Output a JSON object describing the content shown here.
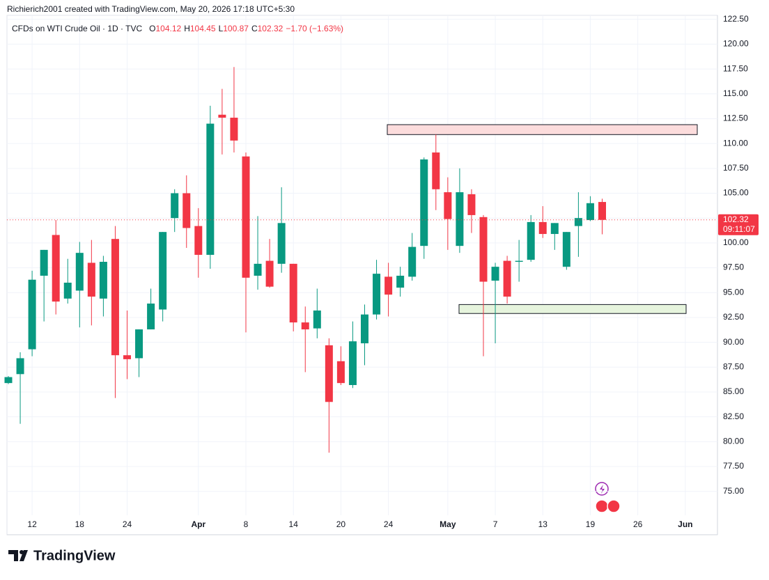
{
  "credit": "Richierich2001 created with TradingView.com, May 20, 2026 17:18 UTC+5:30",
  "header": {
    "symbol": "CFDs on WTI Crude Oil · 1D · TVC",
    "ohlc_labels": [
      "O",
      "H",
      "L",
      "C"
    ],
    "change": "−1.70 (−1.63%)"
  },
  "logo": "TradingView",
  "chart_data": {
    "type": "candlestick",
    "up_color": "#089981",
    "down_color": "#f23645",
    "categories": [
      null,
      null,
      "12",
      null,
      null,
      null,
      "18",
      null,
      null,
      null,
      "24",
      null,
      null,
      null,
      null,
      null,
      "Apr",
      null,
      null,
      null,
      "8",
      null,
      null,
      null,
      "14",
      null,
      null,
      null,
      "20",
      null,
      null,
      null,
      "24",
      null,
      null,
      null,
      null,
      "May",
      null,
      null,
      null,
      "7",
      null,
      null,
      null,
      "13",
      null,
      null,
      null,
      "19",
      null,
      null,
      null,
      "26",
      null,
      null,
      null,
      "Jun"
    ],
    "open": [
      85.9,
      86.8,
      89.3,
      96.7,
      100.8,
      94.4,
      95.2,
      98.0,
      94.4,
      100.4,
      88.7,
      88.4,
      91.3,
      93.3,
      102.5,
      105.0,
      101.7,
      98.8,
      112.9,
      112.6,
      108.7,
      96.7,
      98.2,
      97.9,
      97.9,
      92.0,
      91.4,
      89.7,
      88.1,
      85.7,
      89.9,
      92.8,
      96.6,
      95.5,
      96.6,
      99.7,
      109.1,
      105.1,
      99.7,
      104.9,
      102.6,
      96.2,
      98.2,
      98.1,
      98.3,
      102.1,
      100.9,
      97.6,
      101.7,
      102.3,
      104.12,
      null,
      null,
      null,
      null,
      null,
      null,
      null
    ],
    "high": [
      86.6,
      89.0,
      97.2,
      99.3,
      102.3,
      98.4,
      100.1,
      100.3,
      98.7,
      101.7,
      93.2,
      91.3,
      95.4,
      101.1,
      105.4,
      106.8,
      103.5,
      113.8,
      115.5,
      117.7,
      109.1,
      102.7,
      100.4,
      105.6,
      97.9,
      93.6,
      95.4,
      90.4,
      89.6,
      92.1,
      93.8,
      98.3,
      98.0,
      97.6,
      101.0,
      108.6,
      110.9,
      106.6,
      107.5,
      105.4,
      102.8,
      98.0,
      98.7,
      100.3,
      102.8,
      103.7,
      102.0,
      101.1,
      105.1,
      104.7,
      104.45,
      null,
      null,
      null,
      null,
      null,
      null,
      null
    ],
    "low": [
      85.8,
      81.8,
      88.6,
      92.1,
      92.8,
      93.9,
      91.5,
      91.7,
      92.6,
      84.4,
      86.3,
      86.5,
      91.3,
      92.1,
      101.1,
      99.5,
      96.5,
      97.4,
      108.9,
      109.1,
      91.0,
      95.3,
      95.5,
      97.0,
      91.1,
      87.0,
      90.4,
      78.9,
      85.7,
      85.4,
      87.7,
      92.3,
      92.6,
      94.6,
      96.2,
      98.4,
      103.3,
      99.3,
      99.0,
      101.0,
      88.6,
      89.9,
      93.9,
      96.1,
      98.1,
      100.5,
      99.3,
      97.3,
      98.6,
      102.2,
      100.87,
      null,
      null,
      null,
      null,
      null,
      null,
      null
    ],
    "close": [
      86.5,
      88.4,
      96.3,
      99.3,
      94.1,
      96.0,
      99.0,
      94.6,
      98.1,
      88.7,
      88.3,
      91.3,
      93.9,
      101.1,
      105.0,
      101.5,
      98.8,
      112.0,
      112.6,
      110.3,
      96.5,
      97.9,
      95.6,
      102.0,
      92.0,
      91.3,
      93.2,
      84.0,
      85.9,
      90.1,
      92.8,
      96.9,
      94.8,
      96.7,
      99.6,
      108.4,
      105.4,
      102.4,
      105.1,
      102.8,
      96.1,
      97.6,
      94.6,
      98.2,
      102.1,
      100.9,
      102.0,
      101.1,
      102.5,
      104.0,
      102.32,
      null,
      null,
      null,
      null,
      null,
      null,
      null
    ],
    "countdown": "09:11:07",
    "zones": [
      {
        "low": 110.9,
        "high": 111.9,
        "color": "#fcdcdc"
      },
      {
        "low": 92.9,
        "high": 93.8,
        "color": "#e6f4dd"
      }
    ],
    "ylim": [
      72.6,
      122.9
    ],
    "yticks": [
      {
        "value": 75,
        "label": "75.00"
      },
      {
        "value": 77.5,
        "label": "77.50"
      },
      {
        "value": 80,
        "label": "80.00"
      },
      {
        "value": 82.5,
        "label": "82.50"
      },
      {
        "value": 85,
        "label": "85.00"
      },
      {
        "value": 87.5,
        "label": "87.50"
      },
      {
        "value": 90,
        "label": "90.00"
      },
      {
        "value": 92.5,
        "label": "92.50"
      },
      {
        "value": 95,
        "label": "95.00"
      },
      {
        "value": 97.5,
        "label": "97.50"
      },
      {
        "value": 100,
        "label": "100.00"
      },
      {
        "value": 102.5,
        "label": "102.50"
      },
      {
        "value": 105,
        "label": "105.00"
      },
      {
        "value": 107.5,
        "label": "107.50"
      },
      {
        "value": 110,
        "label": "110.00"
      },
      {
        "value": 112.5,
        "label": "112.50"
      },
      {
        "value": 115,
        "label": "115.00"
      },
      {
        "value": 117.5,
        "label": "117.50"
      },
      {
        "value": 120,
        "label": "120.00"
      },
      {
        "value": 122.5,
        "label": "122.50"
      }
    ],
    "grid": true
  }
}
